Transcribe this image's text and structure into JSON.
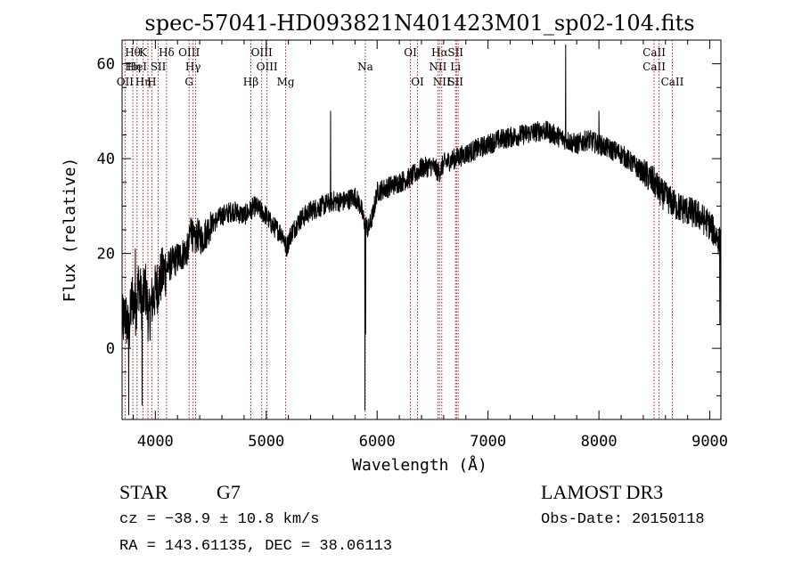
{
  "chart_data": {
    "type": "line",
    "title": "spec-57041-HD093821N401423M01_sp02-104.fits",
    "xlabel": "Wavelength (Å)",
    "ylabel": "Flux (relative)",
    "xlim": [
      3700,
      9100
    ],
    "ylim": [
      -15,
      65
    ],
    "xticks": [
      4000,
      5000,
      6000,
      7000,
      8000,
      9000
    ],
    "xtick_labels": [
      "4000",
      "5000",
      "6000",
      "7000",
      "8000",
      "9000"
    ],
    "yticks": [
      0,
      20,
      40,
      60
    ],
    "ytick_labels": [
      "0",
      "20",
      "40",
      "60"
    ],
    "series": [
      {
        "name": "flux",
        "anchors": [
          [
            3700,
            5
          ],
          [
            3730,
            7
          ],
          [
            3760,
            3
          ],
          [
            3790,
            11
          ],
          [
            3820,
            8
          ],
          [
            3850,
            14
          ],
          [
            3880,
            9
          ],
          [
            3910,
            13
          ],
          [
            3940,
            6
          ],
          [
            3970,
            10
          ],
          [
            4000,
            12
          ],
          [
            4050,
            15
          ],
          [
            4100,
            17
          ],
          [
            4150,
            18
          ],
          [
            4200,
            19
          ],
          [
            4250,
            20
          ],
          [
            4300,
            21
          ],
          [
            4320,
            26
          ],
          [
            4350,
            22
          ],
          [
            4380,
            24
          ],
          [
            4420,
            23
          ],
          [
            4500,
            26
          ],
          [
            4600,
            28
          ],
          [
            4700,
            29
          ],
          [
            4800,
            28
          ],
          [
            4900,
            30
          ],
          [
            5000,
            28
          ],
          [
            5050,
            26
          ],
          [
            5100,
            25
          ],
          [
            5150,
            24
          ],
          [
            5180,
            21
          ],
          [
            5220,
            24
          ],
          [
            5300,
            27
          ],
          [
            5400,
            29
          ],
          [
            5500,
            30
          ],
          [
            5600,
            31
          ],
          [
            5700,
            31
          ],
          [
            5800,
            32
          ],
          [
            5850,
            30
          ],
          [
            5880,
            27
          ],
          [
            5920,
            25
          ],
          [
            5960,
            28
          ],
          [
            6000,
            33
          ],
          [
            6100,
            34
          ],
          [
            6200,
            35
          ],
          [
            6300,
            36
          ],
          [
            6400,
            38
          ],
          [
            6500,
            38.5
          ],
          [
            6560,
            37
          ],
          [
            6600,
            39
          ],
          [
            6700,
            40
          ],
          [
            6800,
            41
          ],
          [
            6900,
            42
          ],
          [
            7000,
            43
          ],
          [
            7100,
            44
          ],
          [
            7200,
            44.5
          ],
          [
            7300,
            45
          ],
          [
            7400,
            45.5
          ],
          [
            7500,
            46
          ],
          [
            7600,
            45
          ],
          [
            7700,
            44
          ],
          [
            7800,
            43
          ],
          [
            7900,
            44
          ],
          [
            8000,
            43
          ],
          [
            8100,
            42
          ],
          [
            8200,
            41
          ],
          [
            8300,
            39
          ],
          [
            8400,
            37
          ],
          [
            8500,
            35
          ],
          [
            8550,
            33
          ],
          [
            8600,
            32
          ],
          [
            8700,
            30
          ],
          [
            8800,
            29
          ],
          [
            8900,
            28
          ],
          [
            9000,
            26
          ],
          [
            9050,
            24
          ],
          [
            9100,
            22
          ]
        ],
        "features": [
          {
            "x": 5890,
            "y": -13
          },
          {
            "x": 5896,
            "y": 3
          },
          {
            "x": 5580,
            "y": 50
          },
          {
            "x": 7700,
            "y": 64
          },
          {
            "x": 3760,
            "y": -14
          },
          {
            "x": 3820,
            "y": 21
          },
          {
            "x": 3880,
            "y": -12
          },
          {
            "x": 9090,
            "y": 5
          },
          {
            "x": 8000,
            "y": 50
          }
        ]
      }
    ],
    "lines": [
      {
        "x": 3727,
        "labels": [
          "",
          "",
          "OII"
        ],
        "rows": [
          2
        ]
      },
      {
        "x": 3797,
        "labels": [
          "Hθ",
          "Hη",
          ""
        ]
      },
      {
        "x": 3835,
        "labels": [
          "",
          "HeI",
          ""
        ]
      },
      {
        "x": 3889,
        "labels": [
          "K",
          "",
          "Hη"
        ]
      },
      {
        "x": 3933,
        "labels": [
          "",
          "",
          ""
        ]
      },
      {
        "x": 3968,
        "labels": [
          "",
          "",
          "H"
        ]
      },
      {
        "x": 4026,
        "labels": [
          "",
          "SII",
          ""
        ]
      },
      {
        "x": 4101,
        "labels": [
          "Hδ",
          "",
          ""
        ]
      },
      {
        "x": 4304,
        "labels": [
          "OIII",
          "",
          "G"
        ]
      },
      {
        "x": 4340,
        "labels": [
          "",
          "Hγ",
          ""
        ]
      },
      {
        "x": 4363,
        "labels": [
          "",
          "",
          ""
        ]
      },
      {
        "x": 4861,
        "labels": [
          "",
          "",
          "Hβ"
        ]
      },
      {
        "x": 4959,
        "labels": [
          "OIII",
          "",
          ""
        ]
      },
      {
        "x": 5007,
        "labels": [
          "",
          "OIII",
          ""
        ]
      },
      {
        "x": 5175,
        "labels": [
          "",
          "",
          "Mg"
        ]
      },
      {
        "x": 5893,
        "labels": [
          "",
          "Na",
          ""
        ]
      },
      {
        "x": 6300,
        "labels": [
          "OI",
          "",
          ""
        ]
      },
      {
        "x": 6364,
        "labels": [
          "",
          "",
          "OI"
        ]
      },
      {
        "x": 6548,
        "labels": [
          "",
          "NII",
          ""
        ]
      },
      {
        "x": 6563,
        "labels": [
          "Hα",
          "",
          ""
        ]
      },
      {
        "x": 6583,
        "labels": [
          "",
          "",
          "NII"
        ]
      },
      {
        "x": 6707,
        "labels": [
          "SII",
          "Li",
          "SII"
        ]
      },
      {
        "x": 6716,
        "labels": [
          "",
          "",
          ""
        ]
      },
      {
        "x": 6731,
        "labels": [
          "",
          "",
          ""
        ]
      },
      {
        "x": 8498,
        "labels": [
          "CaII",
          "CaII",
          ""
        ]
      },
      {
        "x": 8542,
        "labels": [
          "",
          "",
          ""
        ]
      },
      {
        "x": 8662,
        "labels": [
          "",
          "",
          "CaII"
        ]
      }
    ]
  },
  "footer": {
    "object_type": "STAR",
    "subclass": "G7",
    "redshift_line": "cz = −38.9 ± 10.8 km/s",
    "coords_line": "RA = 143.61135, DEC =  38.06113",
    "survey": "LAMOST DR3",
    "obs_date_line": "Obs-Date: 20150118"
  }
}
